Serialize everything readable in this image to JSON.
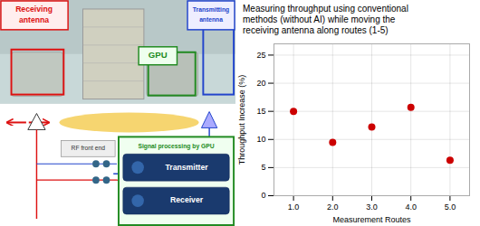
{
  "chart_data": {
    "type": "scatter",
    "title": "Measuring throughput using conventional\nmethods (without AI) while moving the\nreceiving antenna along routes (1-5)",
    "x": [
      1,
      2,
      3,
      4,
      5
    ],
    "values": [
      15.0,
      9.5,
      12.2,
      15.7,
      6.3
    ],
    "color": "#cc0000",
    "xlabel": "Measurement Routes",
    "ylabel": "Throughput Increase (%)",
    "xlim": [
      0.5,
      5.5
    ],
    "ylim": [
      0,
      27
    ],
    "xticks": [
      1,
      2,
      3,
      4,
      5
    ],
    "yticks": [
      0,
      5,
      10,
      15,
      20,
      25
    ],
    "grid": true,
    "annotations": [
      "Receiving antenna",
      "GPU",
      "Transmitting antenna",
      "RF front end",
      "Signal processing by GPU",
      "Transmitter",
      "Receiver"
    ]
  }
}
